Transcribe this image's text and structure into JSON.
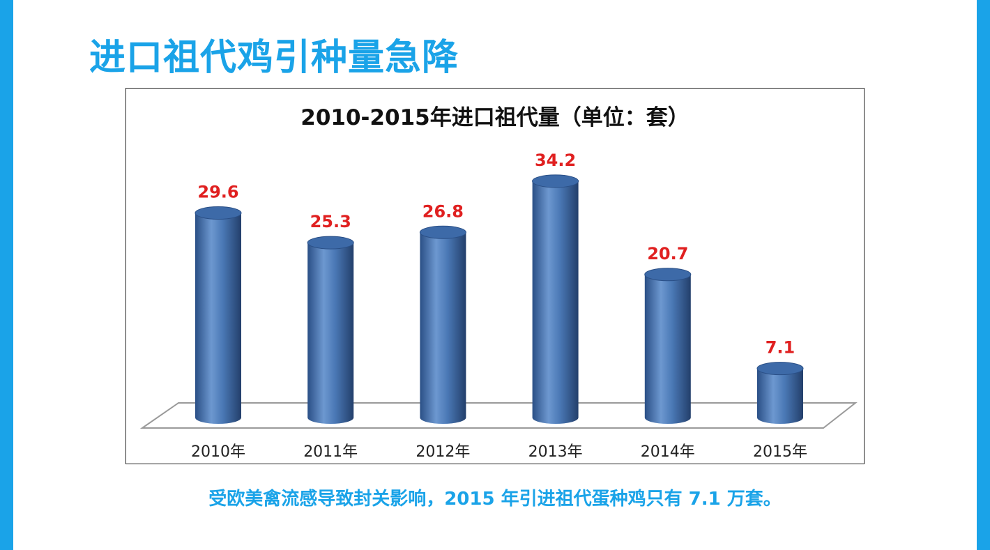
{
  "slide": {
    "title": "进口祖代鸡引种量急降",
    "caption": "受欧美禽流感导致封关影响，2015 年引进祖代蛋种鸡只有 7.1 万套。",
    "accent_color": "#1aa3e8"
  },
  "chart_data": {
    "type": "bar",
    "style": "3d-cylinder",
    "title": "2010-2015年进口祖代量（单位：套）",
    "categories": [
      "2010年",
      "2011年",
      "2012年",
      "2013年",
      "2014年",
      "2015年"
    ],
    "values": [
      29.6,
      25.3,
      26.8,
      34.2,
      20.7,
      7.1
    ],
    "data_labels": [
      "29.6",
      "25.3",
      "26.8",
      "34.2",
      "20.7",
      "7.1"
    ],
    "xlabel": "",
    "ylabel": "",
    "ylim": [
      0,
      35
    ],
    "grid": false,
    "legend": "none",
    "bar_color": "#4a78b5",
    "label_color": "#e02020"
  }
}
